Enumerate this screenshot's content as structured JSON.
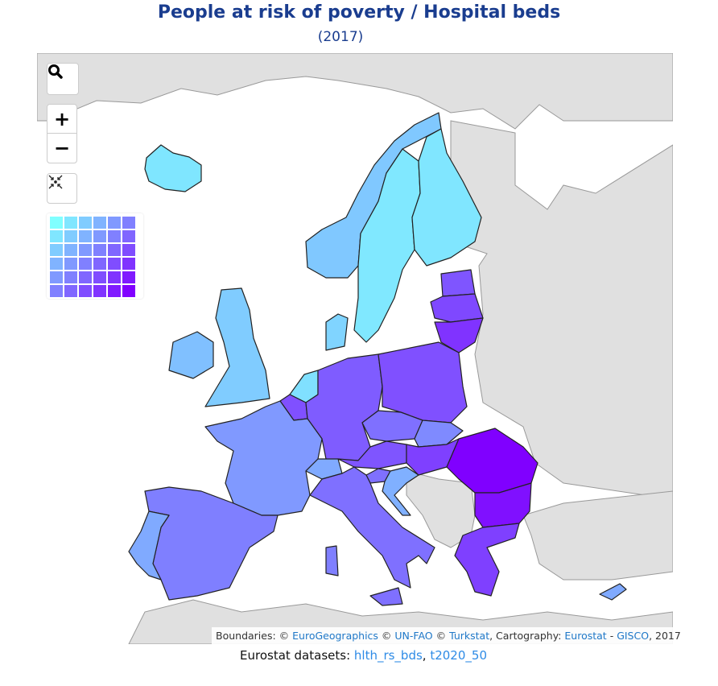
{
  "title": "People at risk of poverty / Hospital beds",
  "subtitle": "(2017)",
  "controls": {
    "search_icon": "search-icon",
    "zoom_in": "+",
    "zoom_out": "−",
    "reset_icon": "collapse-arrows-icon"
  },
  "legend": {
    "rows": 6,
    "cols": 6,
    "top_left": "#80ffff",
    "top_right": "#8080ff",
    "bottom_left": "#8080ff",
    "bottom_right": "#8000ff"
  },
  "attribution": {
    "prefix": "Boundaries: © ",
    "eurogeo": "EuroGeographics",
    " c1": "",
    "sep1": " © ",
    "unfao": "UN-FAO",
    "sep2": " © ",
    "turkstat": "Turkstat",
    "sep3": ", Cartography: ",
    "eurostat": "Eurostat",
    "dash": " - ",
    "gisco": "GISCO",
    "year": ", 2017"
  },
  "datasets": {
    "label": "Eurostat datasets: ",
    "d1": "hlth_rs_bds",
    "comma": ", ",
    "d2": "t2020_50"
  },
  "colors": {
    "non_eu": "#e0e0e0",
    "title": "#1a3d8f"
  }
}
